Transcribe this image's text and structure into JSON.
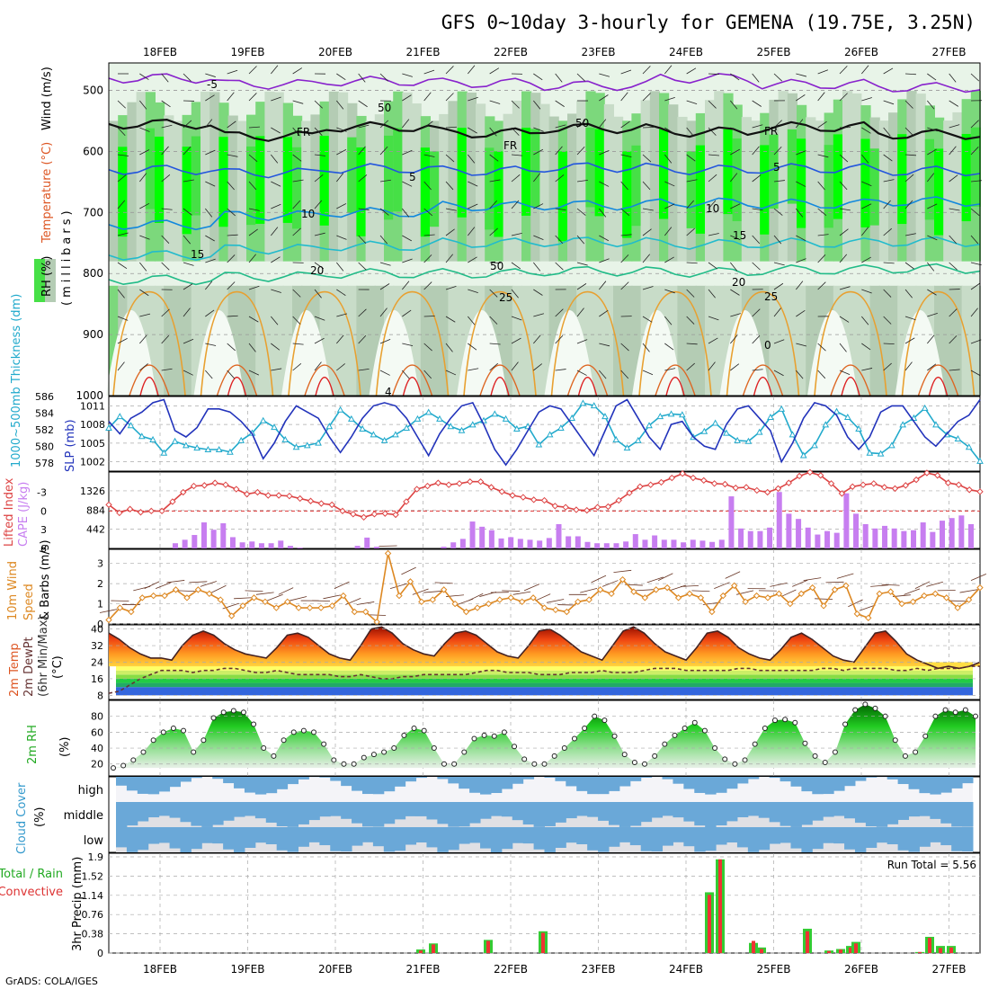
{
  "header": {
    "title": "GFS 0~10day 3-hourly for GEMENA (19.75E, 3.25N)",
    "credit": "GrADS: COLA/IGES"
  },
  "dates": [
    "18FEB",
    "19FEB",
    "20FEB",
    "21FEB",
    "22FEB",
    "23FEB",
    "24FEB",
    "25FEB",
    "26FEB",
    "27FEB"
  ],
  "chart_data": [
    {
      "type": "heatmap",
      "panel": "cross-section",
      "ylabel": "(millibars)",
      "side_labels": [
        "RH (%)",
        "Temperature (°C)",
        "Wind (m/s)"
      ],
      "y_ticks": [
        500,
        600,
        700,
        800,
        900,
        1000
      ],
      "ylim": [
        1000,
        450
      ],
      "contour_labels": [
        "-5",
        "FR",
        "FR",
        "FR",
        "5",
        "5",
        "10",
        "10",
        "15",
        "15",
        "20",
        "20",
        "25",
        "25",
        "0",
        "4",
        "50",
        "50",
        "50"
      ],
      "temperature_levels": [
        {
          "label": "-5",
          "pressure": [
            480,
            490,
            485,
            488,
            492,
            480,
            490,
            495
          ]
        },
        {
          "label": "FR",
          "pressure": [
            555,
            575,
            560,
            570,
            562,
            568,
            560,
            572
          ]
        },
        {
          "label": "5",
          "pressure": [
            630,
            635,
            628,
            632,
            626,
            630,
            628,
            632
          ]
        },
        {
          "label": "10",
          "pressure": [
            720,
            705,
            700,
            690,
            688,
            684,
            686,
            682
          ]
        },
        {
          "label": "15",
          "pressure": [
            770,
            760,
            755,
            750,
            748,
            752,
            750,
            748
          ]
        },
        {
          "label": "20",
          "pressure": [
            810,
            805,
            800,
            800,
            796,
            798,
            794,
            792
          ]
        }
      ]
    },
    {
      "type": "line",
      "panel": "thickness-slp",
      "y_left_ticks": [
        578,
        580,
        582,
        584,
        586
      ],
      "y_right_ticks": [
        1002,
        1005,
        1008,
        1011
      ],
      "left_label": "1000~500mb Thickness (dm)",
      "right_label": "SLP (mb)",
      "series": [
        {
          "name": "SLP (mb)",
          "color": "#2233bb",
          "values": [
            1008.5,
            1006.5,
            1009,
            1010,
            1011.5,
            1012,
            1007,
            1006,
            1007.5,
            1010.5,
            1010.5,
            1010,
            1008.5,
            1006.5,
            1002.5,
            1005,
            1008.5,
            1011,
            1010,
            1009,
            1006,
            1003.5,
            1006,
            1009,
            1011,
            1011.5,
            1011,
            1009,
            1006,
            1003,
            1006.5,
            1009,
            1011,
            1011.5,
            1008,
            1004,
            1001.5,
            1004,
            1007,
            1010,
            1011,
            1010.5,
            1008,
            1005.5,
            1003,
            1007,
            1011,
            1012,
            1009,
            1006,
            1004,
            1008,
            1008.5,
            1006,
            1004.5,
            1004,
            1008,
            1010.5,
            1011,
            1009,
            1007,
            1002,
            1005,
            1009,
            1011.5,
            1011,
            1009.5,
            1006,
            1004,
            1006,
            1010,
            1011,
            1011,
            1008.5,
            1006,
            1004.5,
            1006.5,
            1008.5,
            1009.5,
            1012
          ]
        },
        {
          "name": "1000~500mb Thickness (dm)",
          "color": "#22aacc",
          "values": [
            582.2,
            583.6,
            582.5,
            581.2,
            580.8,
            579.2,
            580.6,
            580.1,
            579.8,
            579.6,
            579.6,
            579.3,
            580.7,
            581.6,
            583.1,
            582.3,
            580.8,
            579.9,
            580.1,
            580.4,
            582.4,
            584.4,
            583.3,
            582.1,
            581.4,
            580.7,
            581.4,
            582.2,
            583.3,
            584.1,
            583.3,
            582.4,
            581.9,
            582.6,
            583.1,
            583.9,
            583.3,
            582.1,
            582.4,
            580.2,
            581.4,
            582.2,
            583.4,
            585.2,
            584.9,
            583.6,
            580.8,
            579.8,
            580.7,
            582.5,
            583.6,
            583.9,
            583.8,
            581.1,
            581.8,
            582.8,
            581.6,
            580.7,
            580.6,
            581.7,
            583.5,
            584.5,
            581.4,
            578.9,
            580.1,
            582.6,
            584.2,
            583.5,
            582.1,
            579.2,
            579.1,
            580.1,
            582.6,
            583.4,
            584.6,
            582.6,
            581.4,
            580.9,
            579.9,
            578.2
          ]
        }
      ]
    },
    {
      "type": "bar",
      "panel": "cape-lifted-index",
      "left_label": "Lifted Index",
      "right_label": "CAPE (J/kg)",
      "y_left_ticks": [
        -3,
        0,
        3,
        6
      ],
      "y_right_ticks": [
        442,
        884,
        1326
      ],
      "cape_values": [
        0,
        0,
        0,
        0,
        0,
        0,
        120,
        200,
        310,
        600,
        430,
        580,
        260,
        140,
        160,
        120,
        120,
        180,
        60,
        20,
        0,
        0,
        0,
        0,
        0,
        60,
        250,
        40,
        0,
        0,
        0,
        0,
        0,
        0,
        40,
        140,
        220,
        620,
        500,
        420,
        230,
        260,
        220,
        200,
        180,
        240,
        560,
        280,
        280,
        150,
        120,
        120,
        120,
        160,
        330,
        200,
        300,
        200,
        200,
        140,
        200,
        180,
        150,
        200,
        1200,
        460,
        400,
        400,
        480,
        1300,
        800,
        680,
        480,
        320,
        400,
        360,
        1270,
        800,
        560,
        460,
        520,
        460,
        400,
        420,
        600,
        380,
        640,
        700,
        760,
        560
      ],
      "lifted_index": [
        -1,
        0.3,
        -0.3,
        0.2,
        0,
        0,
        -1.5,
        -3,
        -4,
        -4.1,
        -4.5,
        -4.2,
        -3.5,
        -2.7,
        -3,
        -2.5,
        -2.5,
        -2.4,
        -2,
        -1.6,
        -1.2,
        -1,
        0,
        0.5,
        1,
        0.5,
        0.4,
        0.6,
        -1.5,
        -3.5,
        -4,
        -4.5,
        -4.2,
        -4.4,
        -4.7,
        -4.7,
        -3.8,
        -3.1,
        -2.5,
        -2.2,
        -1.8,
        -1.7,
        -0.8,
        -0.6,
        -0.2,
        -0.1,
        -0.6,
        -0.7,
        -1.7,
        -2.9,
        -3.9,
        -4.2,
        -4.6,
        -5.3,
        -6,
        -5.3,
        -4.9,
        -4.4,
        -4.3,
        -3.7,
        -3.8,
        -3.3,
        -3,
        -3.6,
        -4.5,
        -5.6,
        -6.2,
        -5.7,
        -4.4,
        -2.8,
        -3.9,
        -4.2,
        -4.4,
        -3.8,
        -3.6,
        -4.1,
        -5,
        -6.1,
        -5.7,
        -4.5,
        -4.2,
        -3.4,
        -3.1
      ]
    },
    {
      "type": "line",
      "panel": "10m-wind",
      "left_label": "10m Wind Speed & Barbs (m/s)",
      "y_ticks": [
        0,
        1,
        2,
        3
      ],
      "series": [
        {
          "name": "10m Wind Speed",
          "color": "#dd8822",
          "values": [
            0.2,
            0.8,
            0.6,
            1.3,
            1.4,
            1.4,
            1.7,
            1.3,
            1.7,
            1.5,
            1.2,
            0.4,
            0.9,
            1.3,
            1.1,
            0.8,
            1.1,
            0.8,
            0.8,
            0.8,
            0.9,
            1.4,
            0.6,
            0.6,
            0.1,
            3.5,
            1.4,
            2.1,
            1.1,
            1.2,
            1.7,
            1.0,
            0.6,
            0.8,
            1.0,
            1.2,
            1.3,
            1.1,
            1.3,
            0.8,
            0.7,
            0.6,
            1.1,
            1.2,
            1.7,
            1.5,
            2.2,
            1.6,
            1.3,
            1.7,
            1.8,
            1.3,
            1.5,
            1.3,
            0.6,
            1.4,
            1.9,
            1.1,
            1.4,
            1.3,
            1.5,
            1.0,
            1.5,
            1.8,
            0.9,
            1.7,
            1.9,
            0.5,
            0.3,
            1.5,
            1.6,
            1.0,
            1.1,
            1.4,
            1.5,
            1.3,
            0.8,
            1.2,
            1.8
          ]
        }
      ]
    },
    {
      "type": "area",
      "panel": "2m-temp",
      "left_label": "2m Temp 2m DewPt (6hr Min/Max) (°C)",
      "y_ticks": [
        8,
        16,
        24,
        32,
        40
      ],
      "temperature": [
        38,
        35,
        31,
        28,
        26,
        26,
        25,
        32,
        37,
        39,
        37,
        33,
        30,
        28,
        27,
        26,
        31,
        37,
        38,
        36,
        32,
        28,
        26,
        25,
        32,
        40,
        41,
        38,
        33,
        30,
        28,
        27,
        33,
        38,
        39,
        37,
        33,
        29,
        27,
        26,
        32,
        39,
        40,
        37,
        33,
        29,
        27,
        25,
        32,
        39,
        41,
        38,
        33,
        29,
        27,
        25,
        31,
        38,
        39,
        36,
        31,
        28,
        26,
        25,
        30,
        36,
        38,
        35,
        31,
        27,
        25,
        24,
        31,
        38,
        39,
        34,
        28,
        25,
        23,
        21,
        22,
        21,
        22,
        24
      ],
      "dewpoint": [
        9,
        10,
        13,
        16,
        18,
        20,
        20,
        20,
        19,
        20,
        20,
        21,
        21,
        20,
        19,
        19,
        20,
        19,
        18,
        18,
        18,
        18,
        17,
        17,
        18,
        17,
        16,
        16,
        17,
        17,
        18,
        18,
        18,
        18,
        18,
        19,
        20,
        20,
        19,
        19,
        19,
        18,
        18,
        18,
        19,
        19,
        19,
        20,
        19,
        19,
        19,
        20,
        21,
        21,
        21,
        20,
        20,
        20,
        20,
        20,
        21,
        21,
        20,
        20,
        20,
        20,
        20,
        20,
        21,
        21,
        20,
        21,
        21,
        21,
        21,
        20,
        20,
        21,
        20,
        21,
        21,
        21,
        22,
        22
      ]
    },
    {
      "type": "area",
      "panel": "2m-rh",
      "left_label": "2m RH (%)",
      "y_ticks": [
        20,
        40,
        60,
        80
      ],
      "values": [
        15,
        18,
        25,
        35,
        50,
        60,
        65,
        62,
        35,
        50,
        78,
        85,
        87,
        85,
        70,
        40,
        30,
        50,
        60,
        62,
        60,
        45,
        25,
        20,
        20,
        28,
        32,
        35,
        40,
        56,
        65,
        62,
        40,
        20,
        20,
        35,
        52,
        56,
        55,
        60,
        42,
        26,
        20,
        20,
        30,
        40,
        52,
        65,
        80,
        75,
        55,
        32,
        22,
        20,
        30,
        45,
        56,
        65,
        72,
        62,
        40,
        26,
        20,
        25,
        45,
        65,
        75,
        76,
        72,
        46,
        30,
        22,
        35,
        70,
        88,
        95,
        90,
        80,
        50,
        30,
        35,
        55,
        80,
        88,
        85,
        88,
        80
      ]
    },
    {
      "type": "bar",
      "panel": "cloud-cover",
      "left_label": "Cloud Cover (%)",
      "rows": [
        "high",
        "middle",
        "low"
      ]
    },
    {
      "type": "bar",
      "panel": "3hr-precip",
      "left_label": "3hr Precip (mm)",
      "legend": [
        "Total / Rain",
        "Convective"
      ],
      "annotation": "Run Total = 5.56",
      "y_ticks": [
        0,
        0.38,
        0.76,
        1.14,
        1.52,
        1.9
      ],
      "total": [
        0.07,
        0.19,
        0.26,
        0.43,
        1.2,
        1.85,
        0.2,
        0.11,
        0.48,
        0.05,
        0.08,
        0.14,
        0.22,
        0.02,
        0.32,
        0.14,
        0.14
      ],
      "convective": [
        0.05,
        0.17,
        0.24,
        0.4,
        1.15,
        1.85,
        0.24,
        0.08,
        0.43,
        0.04,
        0.07,
        0.11,
        0.19,
        0.02,
        0.3,
        0.1,
        0.11
      ]
    }
  ]
}
